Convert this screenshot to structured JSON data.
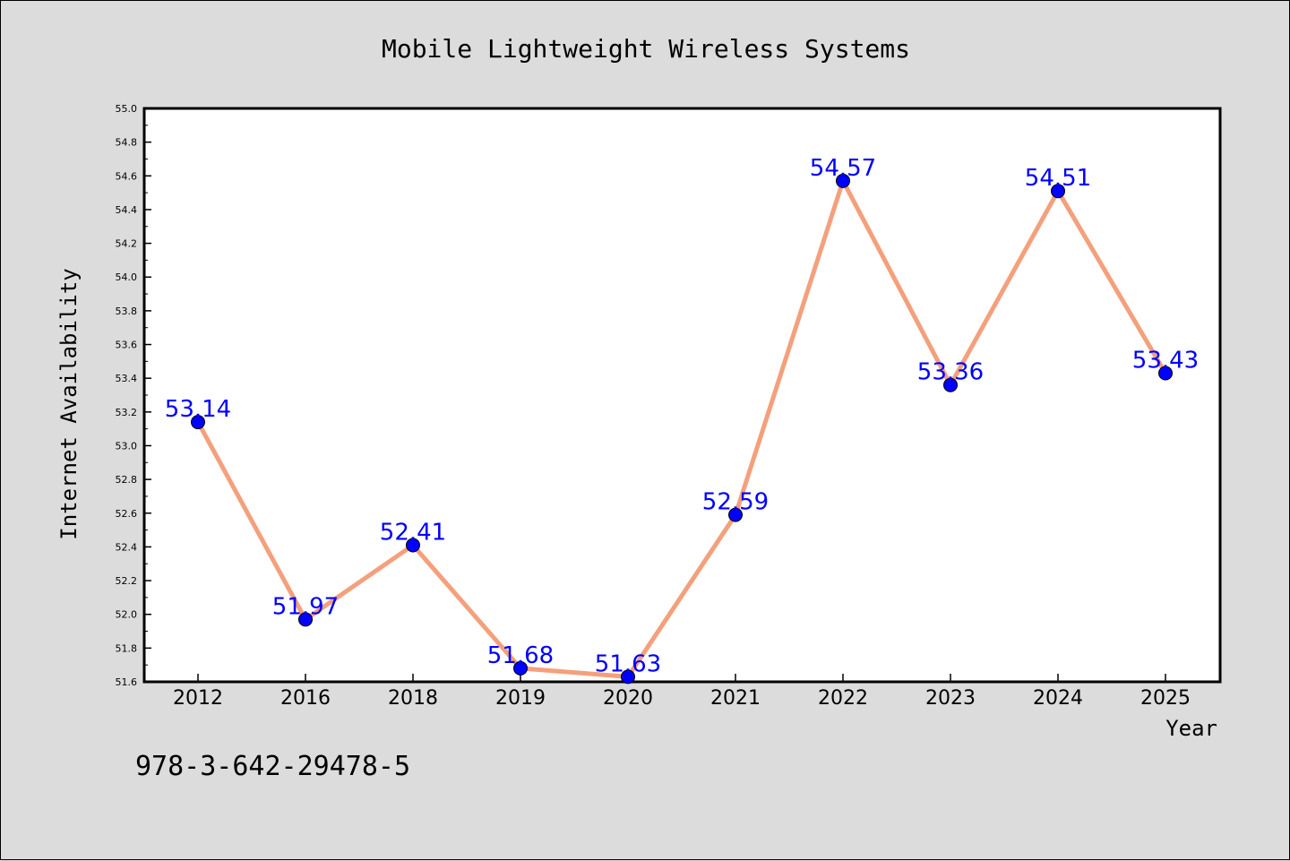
{
  "chart_data": {
    "type": "line",
    "title": "Mobile Lightweight Wireless Systems",
    "xlabel": "Year",
    "ylabel": "Internet Availability",
    "categories": [
      "2012",
      "2016",
      "2018",
      "2019",
      "2020",
      "2021",
      "2022",
      "2023",
      "2024",
      "2025"
    ],
    "series": [
      {
        "values": [
          53.14,
          51.97,
          52.41,
          51.68,
          51.63,
          52.59,
          54.57,
          53.36,
          54.51,
          53.43
        ]
      }
    ],
    "data_labels": [
      "53.14",
      "51.97",
      "52.41",
      "51.68",
      "51.63",
      "52.59",
      "54.57",
      "53.36",
      "54.51",
      "53.43"
    ],
    "ylim": [
      51.6,
      55.0
    ],
    "yticks": [
      "51.6",
      "51.8",
      "52.0",
      "52.2",
      "52.4",
      "52.6",
      "52.8",
      "53.0",
      "53.2",
      "53.4",
      "53.6",
      "53.8",
      "54.0",
      "54.2",
      "54.4",
      "54.6",
      "54.8",
      "55.0"
    ],
    "grid": false,
    "line_color": "#f4a07c",
    "marker_color": "#0000ff",
    "label_color": "#0000ff"
  },
  "footer_text": "978-3-642-29478-5"
}
